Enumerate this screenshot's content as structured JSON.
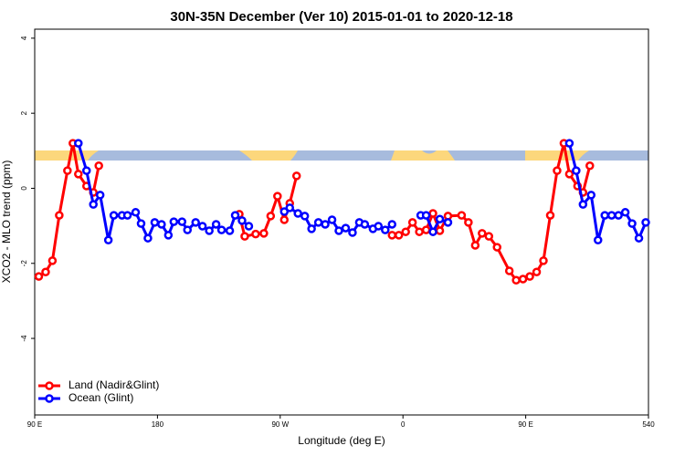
{
  "chart_data": {
    "type": "line",
    "title": "30N-35N December (Ver 10)   2015-01-01 to 2020-12-18",
    "x_label": "Longitude (deg E)",
    "y_label": "XCO2 - MLO trend (ppm)",
    "xlim": [
      90,
      540
    ],
    "xticks": [
      {
        "value": 90,
        "label": "90 E"
      },
      180,
      {
        "value": 270,
        "label": "90 W"
      },
      {
        "value": 360,
        "label": "0"
      },
      {
        "value": 450,
        "label": "90 E"
      },
      540
    ],
    "ylim": [
      -6.04,
      4.24
    ],
    "yticks": [
      4,
      2,
      0,
      -2,
      -4
    ],
    "legend": "bottom-left",
    "series": [
      {
        "name": "Land (Nadir&Glint)",
        "color": "#ff0000",
        "x": [
          93,
          98,
          103,
          108,
          114,
          118,
          122,
          128,
          133,
          137,
          180,
          240,
          244,
          252,
          258,
          263,
          268,
          273,
          277,
          282,
          360,
          352,
          357,
          362,
          367,
          372,
          377,
          382,
          387,
          393,
          403,
          408,
          413,
          418,
          423,
          429,
          438,
          443,
          448,
          453,
          458,
          463,
          468,
          473,
          478,
          482,
          488,
          492,
          497
        ],
        "values": [
          -2.35,
          -2.23,
          -1.93,
          -0.72,
          0.47,
          1.2,
          0.38,
          0.06,
          -0.11,
          0.6,
          null,
          -0.69,
          -1.28,
          -1.22,
          -1.2,
          -0.74,
          -0.21,
          -0.84,
          -0.4,
          0.33,
          null,
          -1.25,
          -1.25,
          -1.16,
          -0.91,
          -1.16,
          -1.11,
          -0.67,
          -1.13,
          -0.74,
          -0.72,
          -0.91,
          -1.52,
          -1.2,
          -1.28,
          -1.57,
          -2.2,
          -2.45,
          -2.42,
          -2.35,
          -2.23,
          -1.93,
          -0.72,
          0.47,
          1.2,
          0.38,
          0.06,
          -0.11,
          0.6
        ]
      },
      {
        "name": "Ocean (Glint)",
        "color": "#0000ff",
        "x": [
          122,
          128,
          133,
          138,
          144,
          148,
          154,
          158,
          164,
          168,
          173,
          178,
          183,
          188,
          192,
          198,
          202,
          208,
          213,
          218,
          223,
          227,
          233,
          237,
          242,
          247,
          290,
          273,
          277,
          283,
          288,
          293,
          298,
          303,
          308,
          313,
          318,
          323,
          328,
          332,
          338,
          342,
          347,
          352,
          355,
          373,
          377,
          382,
          387,
          393,
          400,
          482,
          487,
          492,
          498,
          503,
          508,
          513,
          518,
          523,
          528,
          533,
          538
        ],
        "values": [
          1.2,
          0.47,
          -0.43,
          -0.18,
          -1.38,
          -0.72,
          -0.72,
          -0.72,
          -0.64,
          -0.94,
          -1.33,
          -0.91,
          -0.96,
          -1.25,
          -0.89,
          -0.89,
          -1.11,
          -0.91,
          -1.01,
          -1.13,
          -0.96,
          -1.11,
          -1.13,
          -0.72,
          -0.86,
          -1.01,
          null,
          -0.62,
          -0.52,
          -0.67,
          -0.74,
          -1.08,
          -0.91,
          -0.96,
          -0.84,
          -1.13,
          -1.06,
          -1.18,
          -0.91,
          -0.96,
          -1.08,
          -1.01,
          -1.11,
          -0.96,
          null,
          -0.72,
          -0.72,
          -1.16,
          -0.82,
          -0.91,
          null,
          1.2,
          0.47,
          -0.43,
          -0.18,
          -1.38,
          -0.72,
          -0.72,
          -0.72,
          -0.64,
          -0.94,
          -1.33,
          -0.91
        ]
      }
    ]
  }
}
